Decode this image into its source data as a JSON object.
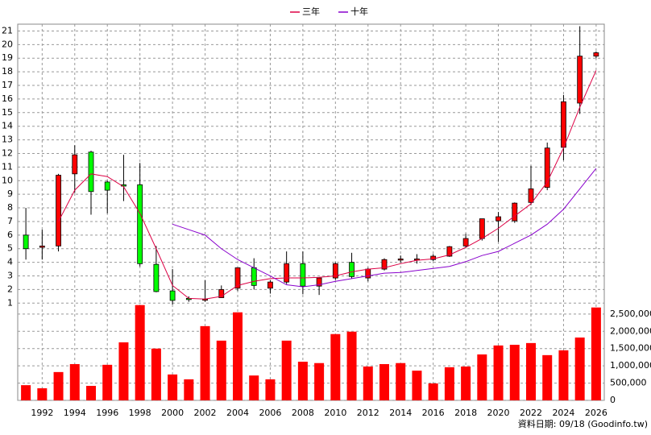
{
  "chart_data": [
    {
      "type": "candlestick",
      "x": [
        1991,
        1992,
        1993,
        1994,
        1995,
        1996,
        1997,
        1998,
        1999,
        2000,
        2001,
        2002,
        2003,
        2004,
        2005,
        2006,
        2007,
        2008,
        2009,
        2010,
        2011,
        2012,
        2013,
        2014,
        2015,
        2016,
        2017,
        2018,
        2019,
        2020,
        2021,
        2022,
        2023,
        2024,
        2025,
        2026
      ],
      "open": [
        6.0,
        5.1,
        5.2,
        10.5,
        12.1,
        9.9,
        9.7,
        9.7,
        3.85,
        1.9,
        1.35,
        1.3,
        1.4,
        2.1,
        3.6,
        2.1,
        2.55,
        3.9,
        2.25,
        2.85,
        4.0,
        2.85,
        3.5,
        4.2,
        4.2,
        4.2,
        4.45,
        5.2,
        5.75,
        7.05,
        7.05,
        8.4,
        9.5,
        12.45,
        15.7,
        19.15
      ],
      "close": [
        5.0,
        5.2,
        10.4,
        11.9,
        9.2,
        9.3,
        9.6,
        3.9,
        1.85,
        1.2,
        1.3,
        1.3,
        2.0,
        3.6,
        2.3,
        2.55,
        3.9,
        2.25,
        2.85,
        3.9,
        2.95,
        3.5,
        4.2,
        4.25,
        4.25,
        4.45,
        5.15,
        5.75,
        7.2,
        7.35,
        8.35,
        9.4,
        12.4,
        15.8,
        19.15,
        19.4
      ],
      "high": [
        8.0,
        6.4,
        10.5,
        12.6,
        12.2,
        10.0,
        11.9,
        11.3,
        5.2,
        3.5,
        1.5,
        2.7,
        2.3,
        3.6,
        4.3,
        2.7,
        4.8,
        4.8,
        2.9,
        4.0,
        4.7,
        3.6,
        4.3,
        4.5,
        4.6,
        4.6,
        5.2,
        6.1,
        7.2,
        7.7,
        8.4,
        11.1,
        12.8,
        16.3,
        21.35,
        19.5
      ],
      "low": [
        4.2,
        4.2,
        4.8,
        9.1,
        7.5,
        7.6,
        8.5,
        3.7,
        1.8,
        0.9,
        1.1,
        1.1,
        1.4,
        1.9,
        2.0,
        1.7,
        2.4,
        1.65,
        1.6,
        2.7,
        2.8,
        2.6,
        3.4,
        4.0,
        3.9,
        4.1,
        4.4,
        5.1,
        5.6,
        5.5,
        6.9,
        8.2,
        9.3,
        11.5,
        14.9,
        19.0
      ],
      "up_color": "#ff0000",
      "down_color": "#00ff00",
      "series": [
        {
          "name": "三年",
          "color": "#dd0044",
          "values": [
            null,
            null,
            7.0,
            9.3,
            10.5,
            10.3,
            9.55,
            7.6,
            5.0,
            2.3,
            1.35,
            1.3,
            1.5,
            2.3,
            2.6,
            2.8,
            2.85,
            2.85,
            2.9,
            3.0,
            3.3,
            3.5,
            3.6,
            3.9,
            4.15,
            4.25,
            4.55,
            5.1,
            5.75,
            6.5,
            7.4,
            8.3,
            9.9,
            12.4,
            15.4,
            18.1
          ]
        },
        {
          "name": "十年",
          "color": "#8800cc",
          "values": [
            null,
            null,
            null,
            null,
            null,
            null,
            null,
            null,
            null,
            6.8,
            6.4,
            6.0,
            5.0,
            4.2,
            3.6,
            3.0,
            2.35,
            2.2,
            2.35,
            2.6,
            2.8,
            3.0,
            3.2,
            3.25,
            3.4,
            3.55,
            3.7,
            4.05,
            4.5,
            4.8,
            5.4,
            6.0,
            6.8,
            7.9,
            9.4,
            10.9
          ]
        }
      ],
      "xlim": [
        1990.5,
        2026.5
      ],
      "xticks": [
        1992,
        1994,
        1996,
        1998,
        2000,
        2002,
        2004,
        2006,
        2008,
        2010,
        2012,
        2014,
        2016,
        2018,
        2020,
        2022,
        2024,
        2026
      ],
      "ylim": [
        0.9,
        21.5
      ],
      "yticks": [
        1,
        2,
        3,
        4,
        5,
        6,
        7,
        8,
        9,
        10,
        11,
        12,
        13,
        14,
        15,
        16,
        17,
        18,
        19,
        20,
        21
      ],
      "grid": true,
      "legend": "top"
    },
    {
      "type": "bar",
      "x": [
        1991,
        1992,
        1993,
        1994,
        1995,
        1996,
        1997,
        1998,
        1999,
        2000,
        2001,
        2002,
        2003,
        2004,
        2005,
        2006,
        2007,
        2008,
        2009,
        2010,
        2011,
        2012,
        2013,
        2014,
        2015,
        2016,
        2017,
        2018,
        2019,
        2020,
        2021,
        2022,
        2023,
        2024,
        2025,
        2026
      ],
      "values": [
        440000,
        350000,
        820000,
        1050000,
        420000,
        1030000,
        1680000,
        2760000,
        1500000,
        750000,
        610000,
        2150000,
        1730000,
        2550000,
        720000,
        610000,
        1730000,
        1120000,
        1080000,
        1920000,
        1990000,
        980000,
        1050000,
        1080000,
        860000,
        490000,
        960000,
        980000,
        1330000,
        1590000,
        1610000,
        1660000,
        1310000,
        1450000,
        1820000,
        2690000
      ],
      "color": "#ff0000",
      "ylim": [
        0,
        2800000
      ],
      "yticks": [
        0,
        {
          "value": 500000,
          "label": "500,000"
        },
        {
          "value": 1000000,
          "label": "1,000,000"
        },
        {
          "value": 1500000,
          "label": "1,500,000"
        },
        {
          "value": 2000000,
          "label": "2,000,000"
        },
        {
          "value": 2500000,
          "label": "2,500,000"
        }
      ],
      "footnote": "資料日期: 09/18 (Goodinfo.tw)"
    }
  ]
}
